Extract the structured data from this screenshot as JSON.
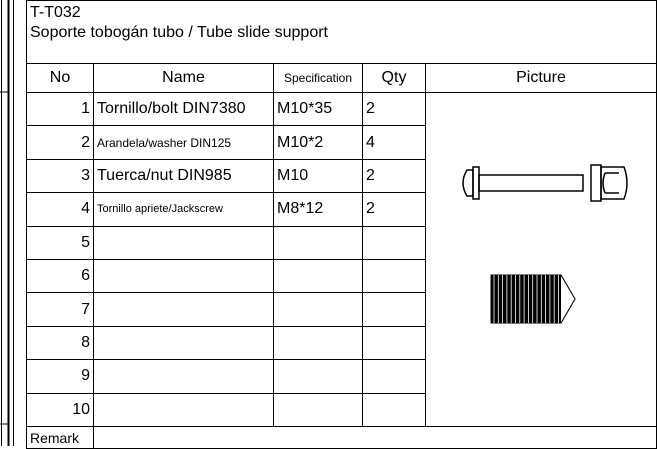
{
  "header": {
    "code": "T-T032",
    "title": "Soporte tobogán tubo / Tube slide support"
  },
  "columns": [
    "No",
    "Name",
    "Specification",
    "Qty",
    "Picture"
  ],
  "rows": [
    {
      "no": 1,
      "name": "Tornillo/bolt DIN7380",
      "spec": "M10*35",
      "qty": 2
    },
    {
      "no": 2,
      "name": "Arandela/washer DIN125",
      "spec": "M10*2",
      "qty": 4
    },
    {
      "no": 3,
      "name": "Tuerca/nut DIN985",
      "spec": "M10",
      "qty": 2
    },
    {
      "no": 4,
      "name": "Tornillo apriete/Jackscrew",
      "spec": "M8*12",
      "qty": 2
    },
    {
      "no": 5
    },
    {
      "no": 6
    },
    {
      "no": 7
    },
    {
      "no": 8
    },
    {
      "no": 9
    },
    {
      "no": 10
    }
  ],
  "remark": "Remark"
}
